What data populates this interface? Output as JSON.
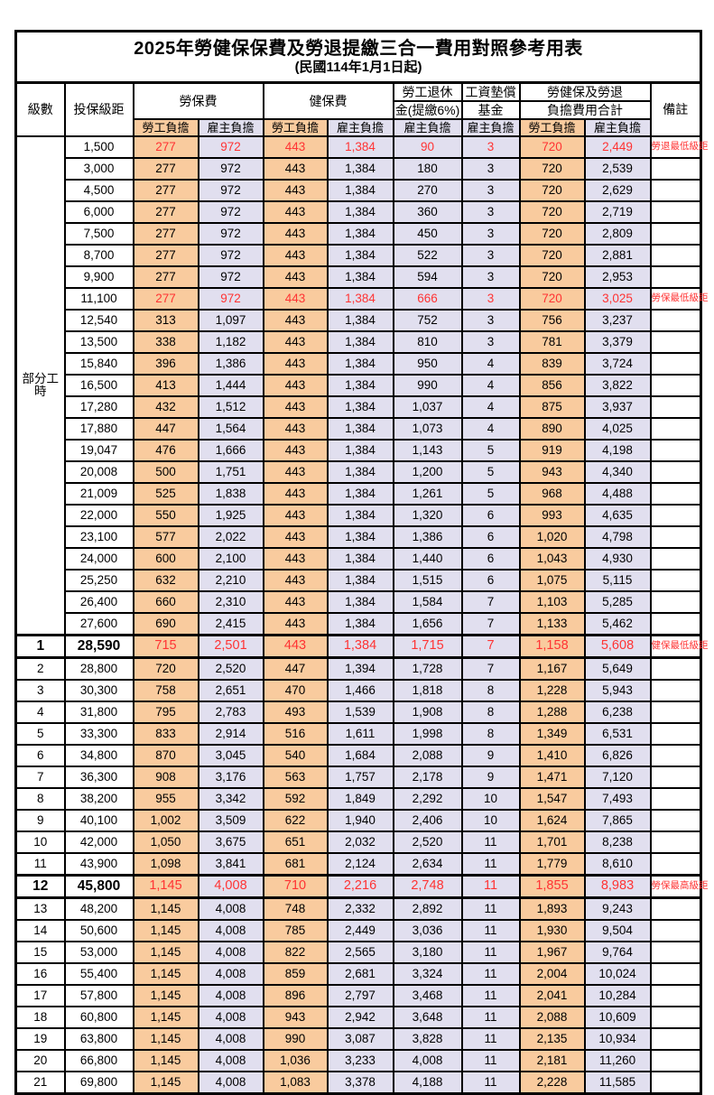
{
  "title": "2025年勞健保保費及勞退提繳三合一費用對照參考用表",
  "subtitle": "(民國114年1月1日起)",
  "colors": {
    "labor_share_bg": "#F9CB9E",
    "employer_share_bg": "#E1DFEF",
    "highlight_red": "#FF3333"
  },
  "header": {
    "level": "級數",
    "salary": "投保級距",
    "labor_ins": "勞保費",
    "health_ins": "健保費",
    "pension_line1": "勞工退休",
    "pension_line2": "金(提繳6%)",
    "wage_fund_line1": "工資墊償",
    "wage_fund_line2": "基金",
    "total_line1": "勞健保及勞退",
    "total_line2": "負擔費用合計",
    "remark": "備註",
    "labor_share": "勞工負擔",
    "employer_share": "雇主負擔"
  },
  "part_time_label": "部分工時",
  "rows": [
    {
      "level": "",
      "salary": "1,500",
      "values": [
        "277",
        "972",
        "443",
        "1,384",
        "90",
        "3",
        "720",
        "2,449"
      ],
      "remark": "勞退最低級距",
      "red": true,
      "emph": false
    },
    {
      "level": "",
      "salary": "3,000",
      "values": [
        "277",
        "972",
        "443",
        "1,384",
        "180",
        "3",
        "720",
        "2,539"
      ],
      "remark": "",
      "red": false,
      "emph": false
    },
    {
      "level": "",
      "salary": "4,500",
      "values": [
        "277",
        "972",
        "443",
        "1,384",
        "270",
        "3",
        "720",
        "2,629"
      ],
      "remark": "",
      "red": false,
      "emph": false
    },
    {
      "level": "",
      "salary": "6,000",
      "values": [
        "277",
        "972",
        "443",
        "1,384",
        "360",
        "3",
        "720",
        "2,719"
      ],
      "remark": "",
      "red": false,
      "emph": false
    },
    {
      "level": "",
      "salary": "7,500",
      "values": [
        "277",
        "972",
        "443",
        "1,384",
        "450",
        "3",
        "720",
        "2,809"
      ],
      "remark": "",
      "red": false,
      "emph": false
    },
    {
      "level": "",
      "salary": "8,700",
      "values": [
        "277",
        "972",
        "443",
        "1,384",
        "522",
        "3",
        "720",
        "2,881"
      ],
      "remark": "",
      "red": false,
      "emph": false
    },
    {
      "level": "",
      "salary": "9,900",
      "values": [
        "277",
        "972",
        "443",
        "1,384",
        "594",
        "3",
        "720",
        "2,953"
      ],
      "remark": "",
      "red": false,
      "emph": false
    },
    {
      "level": "",
      "salary": "11,100",
      "values": [
        "277",
        "972",
        "443",
        "1,384",
        "666",
        "3",
        "720",
        "3,025"
      ],
      "remark": "勞保最低級距",
      "red": true,
      "emph": false
    },
    {
      "level": "",
      "salary": "12,540",
      "values": [
        "313",
        "1,097",
        "443",
        "1,384",
        "752",
        "3",
        "756",
        "3,237"
      ],
      "remark": "",
      "red": false,
      "emph": false
    },
    {
      "level": "",
      "salary": "13,500",
      "values": [
        "338",
        "1,182",
        "443",
        "1,384",
        "810",
        "3",
        "781",
        "3,379"
      ],
      "remark": "",
      "red": false,
      "emph": false
    },
    {
      "level": "",
      "salary": "15,840",
      "values": [
        "396",
        "1,386",
        "443",
        "1,384",
        "950",
        "4",
        "839",
        "3,724"
      ],
      "remark": "",
      "red": false,
      "emph": false
    },
    {
      "level": "",
      "salary": "16,500",
      "values": [
        "413",
        "1,444",
        "443",
        "1,384",
        "990",
        "4",
        "856",
        "3,822"
      ],
      "remark": "",
      "red": false,
      "emph": false
    },
    {
      "level": "",
      "salary": "17,280",
      "values": [
        "432",
        "1,512",
        "443",
        "1,384",
        "1,037",
        "4",
        "875",
        "3,937"
      ],
      "remark": "",
      "red": false,
      "emph": false
    },
    {
      "level": "",
      "salary": "17,880",
      "values": [
        "447",
        "1,564",
        "443",
        "1,384",
        "1,073",
        "4",
        "890",
        "4,025"
      ],
      "remark": "",
      "red": false,
      "emph": false
    },
    {
      "level": "",
      "salary": "19,047",
      "values": [
        "476",
        "1,666",
        "443",
        "1,384",
        "1,143",
        "5",
        "919",
        "4,198"
      ],
      "remark": "",
      "red": false,
      "emph": false
    },
    {
      "level": "",
      "salary": "20,008",
      "values": [
        "500",
        "1,751",
        "443",
        "1,384",
        "1,200",
        "5",
        "943",
        "4,340"
      ],
      "remark": "",
      "red": false,
      "emph": false
    },
    {
      "level": "",
      "salary": "21,009",
      "values": [
        "525",
        "1,838",
        "443",
        "1,384",
        "1,261",
        "5",
        "968",
        "4,488"
      ],
      "remark": "",
      "red": false,
      "emph": false
    },
    {
      "level": "",
      "salary": "22,000",
      "values": [
        "550",
        "1,925",
        "443",
        "1,384",
        "1,320",
        "6",
        "993",
        "4,635"
      ],
      "remark": "",
      "red": false,
      "emph": false
    },
    {
      "level": "",
      "salary": "23,100",
      "values": [
        "577",
        "2,022",
        "443",
        "1,384",
        "1,386",
        "6",
        "1,020",
        "4,798"
      ],
      "remark": "",
      "red": false,
      "emph": false
    },
    {
      "level": "",
      "salary": "24,000",
      "values": [
        "600",
        "2,100",
        "443",
        "1,384",
        "1,440",
        "6",
        "1,043",
        "4,930"
      ],
      "remark": "",
      "red": false,
      "emph": false
    },
    {
      "level": "",
      "salary": "25,250",
      "values": [
        "632",
        "2,210",
        "443",
        "1,384",
        "1,515",
        "6",
        "1,075",
        "5,115"
      ],
      "remark": "",
      "red": false,
      "emph": false
    },
    {
      "level": "",
      "salary": "26,400",
      "values": [
        "660",
        "2,310",
        "443",
        "1,384",
        "1,584",
        "7",
        "1,103",
        "5,285"
      ],
      "remark": "",
      "red": false,
      "emph": false
    },
    {
      "level": "",
      "salary": "27,600",
      "values": [
        "690",
        "2,415",
        "443",
        "1,384",
        "1,656",
        "7",
        "1,133",
        "5,462"
      ],
      "remark": "",
      "red": false,
      "emph": false
    },
    {
      "level": "1",
      "salary": "28,590",
      "values": [
        "715",
        "2,501",
        "443",
        "1,384",
        "1,715",
        "7",
        "1,158",
        "5,608"
      ],
      "remark": "健保最低級距",
      "red": true,
      "emph": true
    },
    {
      "level": "2",
      "salary": "28,800",
      "values": [
        "720",
        "2,520",
        "447",
        "1,394",
        "1,728",
        "7",
        "1,167",
        "5,649"
      ],
      "remark": "",
      "red": false,
      "emph": false
    },
    {
      "level": "3",
      "salary": "30,300",
      "values": [
        "758",
        "2,651",
        "470",
        "1,466",
        "1,818",
        "8",
        "1,228",
        "5,943"
      ],
      "remark": "",
      "red": false,
      "emph": false
    },
    {
      "level": "4",
      "salary": "31,800",
      "values": [
        "795",
        "2,783",
        "493",
        "1,539",
        "1,908",
        "8",
        "1,288",
        "6,238"
      ],
      "remark": "",
      "red": false,
      "emph": false
    },
    {
      "level": "5",
      "salary": "33,300",
      "values": [
        "833",
        "2,914",
        "516",
        "1,611",
        "1,998",
        "8",
        "1,349",
        "6,531"
      ],
      "remark": "",
      "red": false,
      "emph": false
    },
    {
      "level": "6",
      "salary": "34,800",
      "values": [
        "870",
        "3,045",
        "540",
        "1,684",
        "2,088",
        "9",
        "1,410",
        "6,826"
      ],
      "remark": "",
      "red": false,
      "emph": false
    },
    {
      "level": "7",
      "salary": "36,300",
      "values": [
        "908",
        "3,176",
        "563",
        "1,757",
        "2,178",
        "9",
        "1,471",
        "7,120"
      ],
      "remark": "",
      "red": false,
      "emph": false
    },
    {
      "level": "8",
      "salary": "38,200",
      "values": [
        "955",
        "3,342",
        "592",
        "1,849",
        "2,292",
        "10",
        "1,547",
        "7,493"
      ],
      "remark": "",
      "red": false,
      "emph": false
    },
    {
      "level": "9",
      "salary": "40,100",
      "values": [
        "1,002",
        "3,509",
        "622",
        "1,940",
        "2,406",
        "10",
        "1,624",
        "7,865"
      ],
      "remark": "",
      "red": false,
      "emph": false
    },
    {
      "level": "10",
      "salary": "42,000",
      "values": [
        "1,050",
        "3,675",
        "651",
        "2,032",
        "2,520",
        "11",
        "1,701",
        "8,238"
      ],
      "remark": "",
      "red": false,
      "emph": false
    },
    {
      "level": "11",
      "salary": "43,900",
      "values": [
        "1,098",
        "3,841",
        "681",
        "2,124",
        "2,634",
        "11",
        "1,779",
        "8,610"
      ],
      "remark": "",
      "red": false,
      "emph": false
    },
    {
      "level": "12",
      "salary": "45,800",
      "values": [
        "1,145",
        "4,008",
        "710",
        "2,216",
        "2,748",
        "11",
        "1,855",
        "8,983"
      ],
      "remark": "勞保最高級距",
      "red": true,
      "emph": true
    },
    {
      "level": "13",
      "salary": "48,200",
      "values": [
        "1,145",
        "4,008",
        "748",
        "2,332",
        "2,892",
        "11",
        "1,893",
        "9,243"
      ],
      "remark": "",
      "red": false,
      "emph": false
    },
    {
      "level": "14",
      "salary": "50,600",
      "values": [
        "1,145",
        "4,008",
        "785",
        "2,449",
        "3,036",
        "11",
        "1,930",
        "9,504"
      ],
      "remark": "",
      "red": false,
      "emph": false
    },
    {
      "level": "15",
      "salary": "53,000",
      "values": [
        "1,145",
        "4,008",
        "822",
        "2,565",
        "3,180",
        "11",
        "1,967",
        "9,764"
      ],
      "remark": "",
      "red": false,
      "emph": false
    },
    {
      "level": "16",
      "salary": "55,400",
      "values": [
        "1,145",
        "4,008",
        "859",
        "2,681",
        "3,324",
        "11",
        "2,004",
        "10,024"
      ],
      "remark": "",
      "red": false,
      "emph": false
    },
    {
      "level": "17",
      "salary": "57,800",
      "values": [
        "1,145",
        "4,008",
        "896",
        "2,797",
        "3,468",
        "11",
        "2,041",
        "10,284"
      ],
      "remark": "",
      "red": false,
      "emph": false
    },
    {
      "level": "18",
      "salary": "60,800",
      "values": [
        "1,145",
        "4,008",
        "943",
        "2,942",
        "3,648",
        "11",
        "2,088",
        "10,609"
      ],
      "remark": "",
      "red": false,
      "emph": false
    },
    {
      "level": "19",
      "salary": "63,800",
      "values": [
        "1,145",
        "4,008",
        "990",
        "3,087",
        "3,828",
        "11",
        "2,135",
        "10,934"
      ],
      "remark": "",
      "red": false,
      "emph": false
    },
    {
      "level": "20",
      "salary": "66,800",
      "values": [
        "1,145",
        "4,008",
        "1,036",
        "3,233",
        "4,008",
        "11",
        "2,181",
        "11,260"
      ],
      "remark": "",
      "red": false,
      "emph": false
    },
    {
      "level": "21",
      "salary": "69,800",
      "values": [
        "1,145",
        "4,008",
        "1,083",
        "3,378",
        "4,188",
        "11",
        "2,228",
        "11,585"
      ],
      "remark": "",
      "red": false,
      "emph": false
    }
  ]
}
